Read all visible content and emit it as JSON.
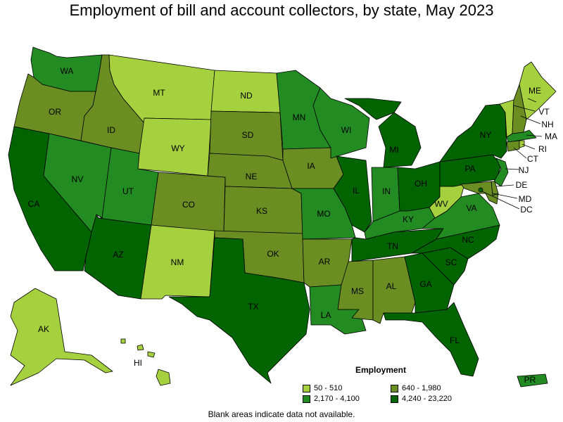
{
  "title": "Employment of bill and account collectors, by state, May 2023",
  "legend": {
    "title": "Employment",
    "items": [
      {
        "label": "50 - 510",
        "color": "#a6d13e"
      },
      {
        "label": "640 - 1,980",
        "color": "#6b8e23"
      },
      {
        "label": "2,170 - 4,100",
        "color": "#228b22"
      },
      {
        "label": "4,240 - 23,220",
        "color": "#006400"
      }
    ]
  },
  "note": "Blank areas indicate data not available.",
  "states": [
    {
      "abbr": "WA",
      "tier": 2
    },
    {
      "abbr": "OR",
      "tier": 1
    },
    {
      "abbr": "CA",
      "tier": 3
    },
    {
      "abbr": "NV",
      "tier": 2
    },
    {
      "abbr": "ID",
      "tier": 1
    },
    {
      "abbr": "MT",
      "tier": 0
    },
    {
      "abbr": "WY",
      "tier": 0
    },
    {
      "abbr": "UT",
      "tier": 2
    },
    {
      "abbr": "AZ",
      "tier": 3
    },
    {
      "abbr": "CO",
      "tier": 1
    },
    {
      "abbr": "NM",
      "tier": 0
    },
    {
      "abbr": "ND",
      "tier": 0
    },
    {
      "abbr": "SD",
      "tier": 1
    },
    {
      "abbr": "NE",
      "tier": 1
    },
    {
      "abbr": "KS",
      "tier": 1
    },
    {
      "abbr": "OK",
      "tier": 1
    },
    {
      "abbr": "TX",
      "tier": 3
    },
    {
      "abbr": "MN",
      "tier": 2
    },
    {
      "abbr": "IA",
      "tier": 1
    },
    {
      "abbr": "MO",
      "tier": 2
    },
    {
      "abbr": "AR",
      "tier": 1
    },
    {
      "abbr": "LA",
      "tier": 2
    },
    {
      "abbr": "WI",
      "tier": 2
    },
    {
      "abbr": "IL",
      "tier": 3
    },
    {
      "abbr": "MI",
      "tier": 3
    },
    {
      "abbr": "IN",
      "tier": 2
    },
    {
      "abbr": "OH",
      "tier": 3
    },
    {
      "abbr": "KY",
      "tier": 2
    },
    {
      "abbr": "TN",
      "tier": 3
    },
    {
      "abbr": "MS",
      "tier": 1
    },
    {
      "abbr": "AL",
      "tier": 1
    },
    {
      "abbr": "GA",
      "tier": 3
    },
    {
      "abbr": "FL",
      "tier": 3
    },
    {
      "abbr": "SC",
      "tier": 3
    },
    {
      "abbr": "NC",
      "tier": 3
    },
    {
      "abbr": "VA",
      "tier": 2
    },
    {
      "abbr": "WV",
      "tier": 0
    },
    {
      "abbr": "PA",
      "tier": 3
    },
    {
      "abbr": "NY",
      "tier": 3
    },
    {
      "abbr": "VT",
      "tier": 0
    },
    {
      "abbr": "NH",
      "tier": 1
    },
    {
      "abbr": "ME",
      "tier": 0
    },
    {
      "abbr": "MA",
      "tier": 2
    },
    {
      "abbr": "RI",
      "tier": 0
    },
    {
      "abbr": "CT",
      "tier": 1
    },
    {
      "abbr": "NJ",
      "tier": 2
    },
    {
      "abbr": "DE",
      "tier": 1
    },
    {
      "abbr": "MD",
      "tier": 1
    },
    {
      "abbr": "DC",
      "tier": 3
    },
    {
      "abbr": "AK",
      "tier": 0
    },
    {
      "abbr": "HI",
      "tier": 0
    },
    {
      "abbr": "PR",
      "tier": 2
    }
  ]
}
